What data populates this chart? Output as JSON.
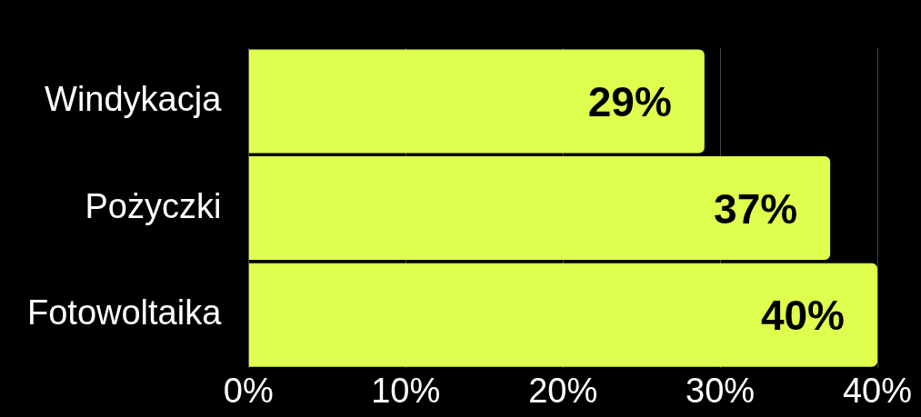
{
  "chart_data": {
    "type": "bar",
    "orientation": "horizontal",
    "categories": [
      "Windykacja",
      "Pożyczki",
      "Fotowoltaika"
    ],
    "values": [
      29,
      37,
      40
    ],
    "color": "#dfff4f",
    "value_labels": [
      "29%",
      "37%",
      "40%"
    ],
    "xlim": [
      0,
      40
    ],
    "xticks": [
      {
        "value": 0,
        "label": "0%"
      },
      {
        "value": 10,
        "label": "10%"
      },
      {
        "value": 20,
        "label": "20%"
      },
      {
        "value": 30,
        "label": "30%"
      },
      {
        "value": 40,
        "label": "40%"
      }
    ],
    "grid": "x",
    "legend": false
  }
}
